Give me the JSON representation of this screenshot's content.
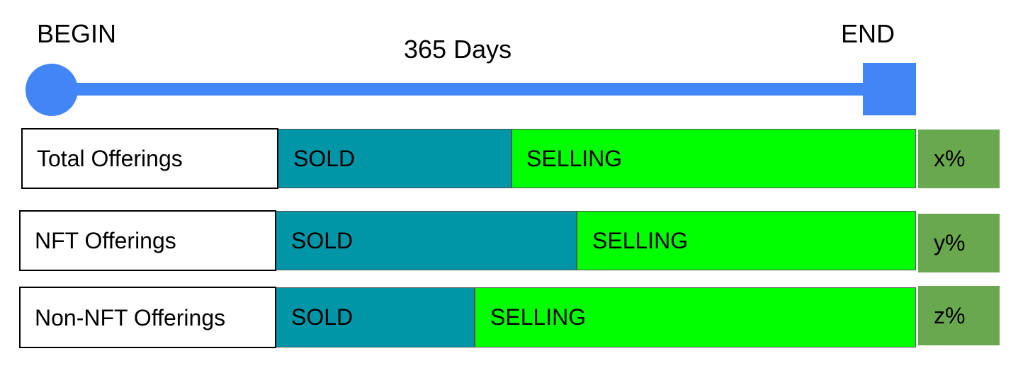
{
  "timeline": {
    "begin_label": "BEGIN",
    "end_label": "END",
    "duration_label": "365 Days",
    "color": "#4285f4"
  },
  "colors": {
    "sold": "#0096a8",
    "selling": "#00ff00",
    "percent_box": "#6aa84f"
  },
  "rows": [
    {
      "label": "Total Offerings",
      "sold_label": "SOLD",
      "selling_label": "SELLING",
      "sold_fraction": 0.366,
      "percent": "x%"
    },
    {
      "label": "NFT Offerings",
      "sold_label": "SOLD",
      "selling_label": "SELLING",
      "sold_fraction": 0.47,
      "percent": "y%"
    },
    {
      "label": "Non-NFT Offerings",
      "sold_label": "SOLD",
      "selling_label": "SELLING",
      "sold_fraction": 0.31,
      "percent": "z%"
    }
  ]
}
